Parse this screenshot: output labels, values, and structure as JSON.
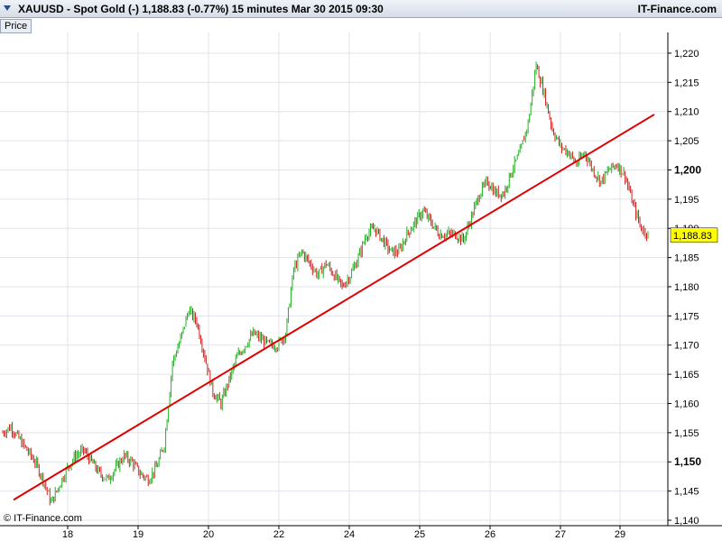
{
  "header": {
    "symbol": "XAUUSD",
    "title": "XAUUSD - Spot Gold (-)    1,188.83 (-0.77%)    15 minutes   Mar 30 2015 09:30",
    "brand": "IT-Finance.com"
  },
  "price_tag": "Price",
  "copyright": "© IT-Finance.com",
  "colors": {
    "up": "#22b022",
    "down": "#d02020",
    "trendline": "#e00000",
    "last_price_bg": "#ffff00",
    "grid": "#dfe3ea"
  },
  "chart_data": {
    "type": "line",
    "title": "XAUUSD - Spot Gold (-)",
    "interval": "15 minutes",
    "last_price": 1188.83,
    "last_price_label": "1,188.83",
    "change_pct": "-0.77%",
    "ylim": [
      1140,
      1222
    ],
    "y_ticks": [
      {
        "v": 1140,
        "label": "1,140"
      },
      {
        "v": 1145,
        "label": "1,145"
      },
      {
        "v": 1150,
        "label": "1,150",
        "bold": true
      },
      {
        "v": 1155,
        "label": "1,155"
      },
      {
        "v": 1160,
        "label": "1,160"
      },
      {
        "v": 1165,
        "label": "1,165"
      },
      {
        "v": 1170,
        "label": "1,170"
      },
      {
        "v": 1175,
        "label": "1,175"
      },
      {
        "v": 1180,
        "label": "1,180"
      },
      {
        "v": 1185,
        "label": "1,185"
      },
      {
        "v": 1190,
        "label": "1,190"
      },
      {
        "v": 1195,
        "label": "1,195"
      },
      {
        "v": 1200,
        "label": "1,200",
        "bold": true
      },
      {
        "v": 1205,
        "label": "1,205"
      },
      {
        "v": 1210,
        "label": "1,210"
      },
      {
        "v": 1215,
        "label": "1,215"
      },
      {
        "v": 1220,
        "label": "1,220"
      }
    ],
    "x_ticks": [
      "18",
      "19",
      "20",
      "22",
      "24",
      "25",
      "26",
      "27",
      "29"
    ],
    "series": [
      {
        "values": [
          1155,
          1156,
          1154,
          1152,
          1150,
          1147,
          1143,
          1146,
          1149,
          1151,
          1152,
          1150,
          1148,
          1147,
          1149,
          1151,
          1150,
          1148,
          1147,
          1149,
          1153,
          1167,
          1171,
          1176,
          1174,
          1168,
          1162,
          1160,
          1164,
          1168,
          1170,
          1172,
          1171,
          1170,
          1170,
          1172,
          1183,
          1186,
          1184,
          1182,
          1184,
          1182,
          1180,
          1182,
          1185,
          1189,
          1190,
          1188,
          1186,
          1186,
          1189,
          1191,
          1193,
          1191,
          1189,
          1189,
          1189,
          1188,
          1192,
          1196,
          1198,
          1196,
          1196,
          1200,
          1203,
          1208,
          1218,
          1213,
          1207,
          1204,
          1203,
          1201,
          1203,
          1200,
          1198,
          1200,
          1201,
          1199,
          1194,
          1190,
          1188.83
        ]
      }
    ],
    "trendline": {
      "start": 1143.5,
      "end": 1209.5
    }
  }
}
